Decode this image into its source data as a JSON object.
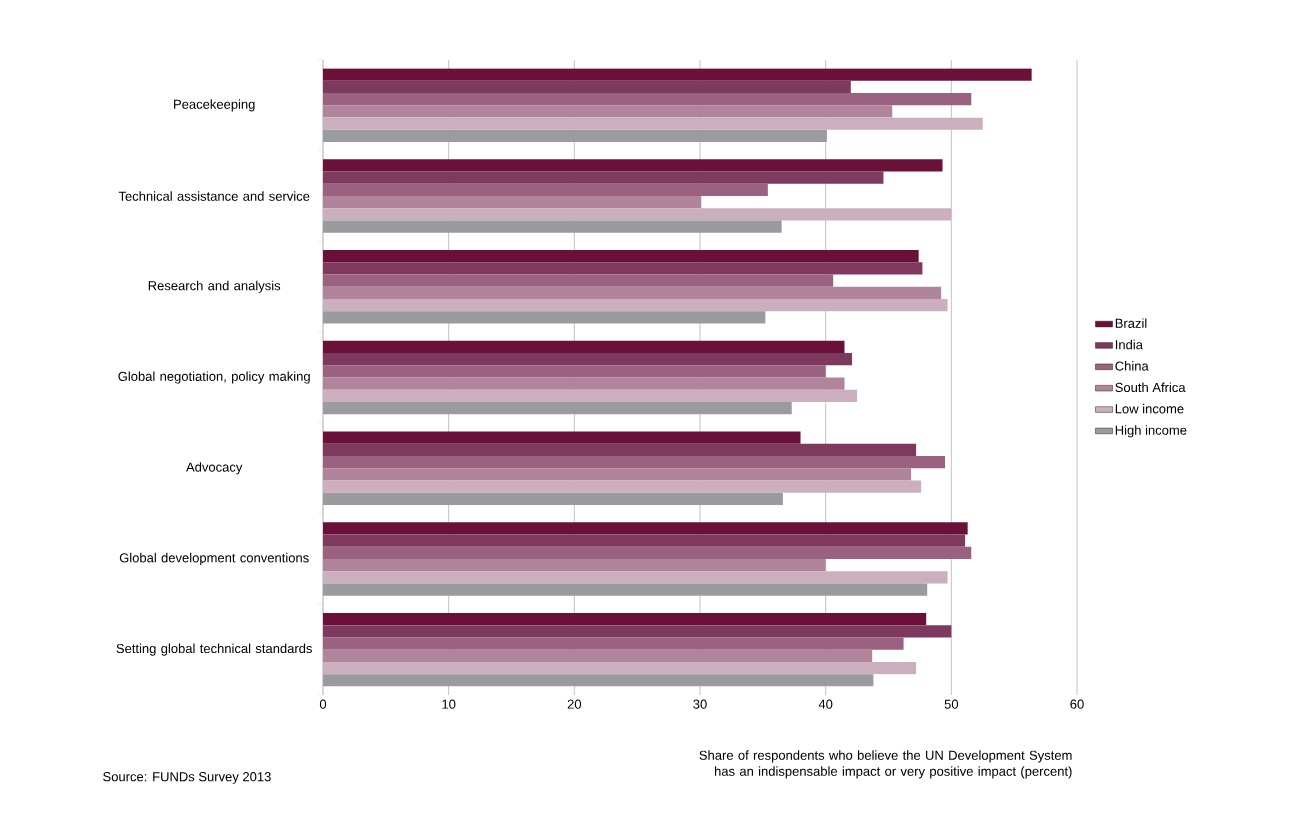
{
  "chart_data": {
    "type": "bar",
    "orientation": "horizontal",
    "categories": [
      "Peacekeeping",
      "Technical assistance and service",
      "Research and analysis",
      "Global negotiation, policy making",
      "Advocacy",
      "Global development conventions",
      "Setting global technical standards"
    ],
    "series": [
      {
        "name": "Brazil",
        "color": "#6b1039",
        "values": [
          56.4,
          49.3,
          47.4,
          41.5,
          38.0,
          51.3,
          48.0
        ]
      },
      {
        "name": "India",
        "color": "#7e3a5e",
        "values": [
          42.0,
          44.6,
          47.7,
          42.1,
          47.2,
          51.1,
          50.0
        ]
      },
      {
        "name": "China",
        "color": "#9a6280",
        "values": [
          51.6,
          35.4,
          40.6,
          40.0,
          49.5,
          51.6,
          46.2
        ]
      },
      {
        "name": "South Africa",
        "color": "#b0849a",
        "values": [
          45.3,
          30.1,
          49.2,
          41.5,
          46.8,
          40.0,
          43.7
        ]
      },
      {
        "name": "Low income",
        "color": "#cbafbe",
        "values": [
          52.5,
          50.0,
          49.7,
          42.5,
          47.6,
          49.7,
          47.2
        ]
      },
      {
        "name": "High income",
        "color": "#9a9b9f",
        "values": [
          40.1,
          36.5,
          35.2,
          37.3,
          36.6,
          48.1,
          43.8
        ]
      }
    ],
    "xlim": [
      0,
      60
    ],
    "xticks": [
      0,
      10,
      20,
      30,
      40,
      50,
      60
    ],
    "grid": "x",
    "legend": "right",
    "xlabel": "Share of respondents who believe the UN Development System has an indispensable impact or very positive impact (percent)",
    "annotations": [
      "Source: FUNDs Survey 2013"
    ]
  }
}
